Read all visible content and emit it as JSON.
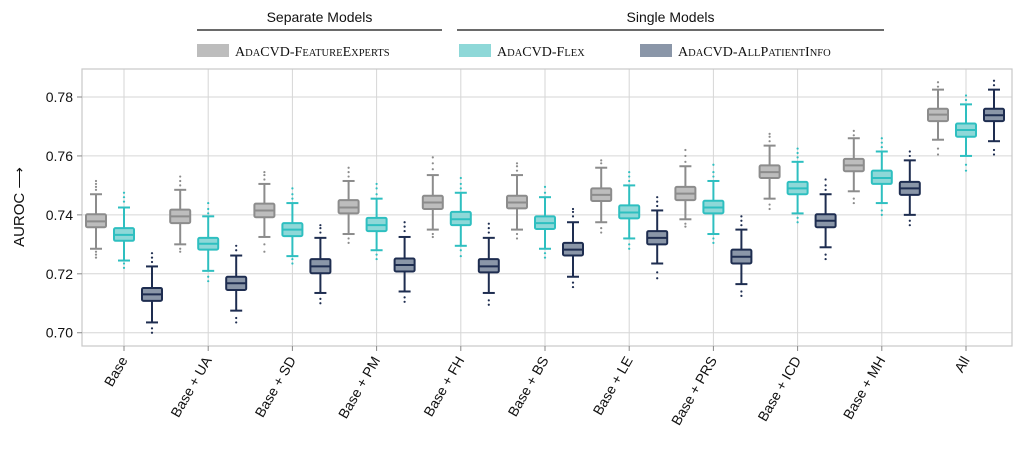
{
  "chart_data": {
    "type": "box",
    "title": "",
    "xlabel": "",
    "ylabel": "AUROC ⟶",
    "ylim": [
      0.6955,
      0.7895
    ],
    "yticks": [
      "0.70",
      "0.72",
      "0.74",
      "0.76",
      "0.78"
    ],
    "ytick_values": [
      0.7,
      0.72,
      0.74,
      0.76,
      0.78
    ],
    "grid": true,
    "legend_position": "top",
    "groups": [
      {
        "label": "Separate Models",
        "series": [
          0
        ]
      },
      {
        "label": "Single Models",
        "series": [
          1,
          2
        ]
      }
    ],
    "categories": [
      "Base",
      "Base + UA",
      "Base + SD",
      "Base + PM",
      "Base + FH",
      "Base + BS",
      "Base + LE",
      "Base + PRS",
      "Base + ICD",
      "Base + MH",
      "All"
    ],
    "series": [
      {
        "name": "AdaCVD-FeatureExperts",
        "legend_main": "A",
        "legend_rest": "DA",
        "legend_main2": "CVD-F",
        "legend_rest2": "EATURE",
        "legend_main3": "E",
        "legend_rest3": "XPERTS",
        "color": "#bdbdbd",
        "edge": "#8c8c8c",
        "boxes": [
          {
            "whislo": 0.7285,
            "q1": 0.7358,
            "med": 0.7378,
            "q3": 0.7402,
            "whishi": 0.747,
            "fliers": [
              0.7255,
              0.7265,
              0.7275,
              0.7485,
              0.7495,
              0.7505,
              0.7515
            ]
          },
          {
            "whislo": 0.73,
            "q1": 0.7372,
            "med": 0.7395,
            "q3": 0.7418,
            "whishi": 0.7485,
            "fliers": [
              0.7275,
              0.7285,
              0.75,
              0.7515,
              0.753
            ]
          },
          {
            "whislo": 0.7325,
            "q1": 0.7392,
            "med": 0.7415,
            "q3": 0.7438,
            "whishi": 0.7505,
            "fliers": [
              0.7275,
              0.73,
              0.752,
              0.7535,
              0.7545
            ]
          },
          {
            "whislo": 0.7335,
            "q1": 0.7405,
            "med": 0.7425,
            "q3": 0.745,
            "whishi": 0.7515,
            "fliers": [
              0.7305,
              0.732,
              0.753,
              0.7545,
              0.756
            ]
          },
          {
            "whislo": 0.735,
            "q1": 0.742,
            "med": 0.7442,
            "q3": 0.7465,
            "whishi": 0.7535,
            "fliers": [
              0.7325,
              0.7335,
              0.7555,
              0.7575,
              0.7595
            ]
          },
          {
            "whislo": 0.735,
            "q1": 0.7422,
            "med": 0.7442,
            "q3": 0.7465,
            "whishi": 0.7535,
            "fliers": [
              0.732,
              0.7335,
              0.755,
              0.7565,
              0.7575
            ]
          },
          {
            "whislo": 0.7375,
            "q1": 0.7447,
            "med": 0.7468,
            "q3": 0.749,
            "whishi": 0.756,
            "fliers": [
              0.734,
              0.7355,
              0.7575,
              0.7585
            ]
          },
          {
            "whislo": 0.7385,
            "q1": 0.745,
            "med": 0.7472,
            "q3": 0.7495,
            "whishi": 0.7565,
            "fliers": [
              0.736,
              0.737,
              0.758,
              0.76,
              0.762
            ]
          },
          {
            "whislo": 0.7455,
            "q1": 0.7525,
            "med": 0.7545,
            "q3": 0.7568,
            "whishi": 0.7635,
            "fliers": [
              0.742,
              0.7435,
              0.765,
              0.7665,
              0.7675
            ]
          },
          {
            "whislo": 0.748,
            "q1": 0.7548,
            "med": 0.7568,
            "q3": 0.759,
            "whishi": 0.766,
            "fliers": [
              0.744,
              0.7455,
              0.767,
              0.7685
            ]
          },
          {
            "whislo": 0.7655,
            "q1": 0.7718,
            "med": 0.774,
            "q3": 0.776,
            "whishi": 0.7825,
            "fliers": [
              0.7605,
              0.7625,
              0.7835,
              0.785
            ]
          }
        ]
      },
      {
        "name": "AdaCVD-Flex",
        "legend_main": "A",
        "legend_rest": "DA",
        "legend_main2": "CVD-F",
        "legend_rest2": "LEX",
        "legend_main3": "",
        "legend_rest3": "",
        "color": "#8ed8d8",
        "edge": "#2ebfc0",
        "boxes": [
          {
            "whislo": 0.7245,
            "q1": 0.7312,
            "med": 0.7332,
            "q3": 0.7355,
            "whishi": 0.7425,
            "fliers": [
              0.722,
              0.7235,
              0.7445,
              0.746,
              0.7475
            ]
          },
          {
            "whislo": 0.721,
            "q1": 0.7282,
            "med": 0.7302,
            "q3": 0.7322,
            "whishi": 0.7395,
            "fliers": [
              0.7175,
              0.719,
              0.7405,
              0.742,
              0.744
            ]
          },
          {
            "whislo": 0.726,
            "q1": 0.7328,
            "med": 0.735,
            "q3": 0.7372,
            "whishi": 0.744,
            "fliers": [
              0.7235,
              0.725,
              0.7455,
              0.747,
              0.749
            ]
          },
          {
            "whislo": 0.728,
            "q1": 0.7345,
            "med": 0.7365,
            "q3": 0.739,
            "whishi": 0.7455,
            "fliers": [
              0.725,
              0.7265,
              0.747,
              0.749,
              0.7505
            ]
          },
          {
            "whislo": 0.7295,
            "q1": 0.7365,
            "med": 0.7385,
            "q3": 0.741,
            "whishi": 0.7475,
            "fliers": [
              0.726,
              0.728,
              0.749,
              0.7505,
              0.7525
            ]
          },
          {
            "whislo": 0.7285,
            "q1": 0.7352,
            "med": 0.7372,
            "q3": 0.7395,
            "whishi": 0.746,
            "fliers": [
              0.7255,
              0.727,
              0.7475,
              0.7495
            ]
          },
          {
            "whislo": 0.732,
            "q1": 0.7388,
            "med": 0.7408,
            "q3": 0.7432,
            "whishi": 0.75,
            "fliers": [
              0.7285,
              0.73,
              0.7515,
              0.753,
              0.7545
            ]
          },
          {
            "whislo": 0.7335,
            "q1": 0.7405,
            "med": 0.7425,
            "q3": 0.7448,
            "whishi": 0.7515,
            "fliers": [
              0.7305,
              0.732,
              0.753,
              0.7545,
              0.757
            ]
          },
          {
            "whislo": 0.7405,
            "q1": 0.747,
            "med": 0.749,
            "q3": 0.7512,
            "whishi": 0.758,
            "fliers": [
              0.7375,
              0.739,
              0.7595,
              0.761,
              0.7625
            ]
          },
          {
            "whislo": 0.744,
            "q1": 0.7505,
            "med": 0.7525,
            "q3": 0.755,
            "whishi": 0.7615,
            "fliers": [
              0.74,
              0.7415,
              0.763,
              0.7645,
              0.766
            ]
          },
          {
            "whislo": 0.76,
            "q1": 0.7665,
            "med": 0.7688,
            "q3": 0.771,
            "whishi": 0.7775,
            "fliers": [
              0.755,
              0.757,
              0.779,
              0.7805
            ]
          }
        ]
      },
      {
        "name": "AdaCVD-AllPatientInfo",
        "legend_main": "A",
        "legend_rest": "DA",
        "legend_main2": "CVD-A",
        "legend_rest2": "LL",
        "legend_main3": "P",
        "legend_rest3": "ATIENT",
        "legend_main4": "I",
        "legend_rest4": "NFO",
        "color": "#8a96a8",
        "edge": "#1e2d50",
        "boxes": [
          {
            "whislo": 0.7035,
            "q1": 0.7108,
            "med": 0.713,
            "q3": 0.7152,
            "whishi": 0.7225,
            "fliers": [
              0.7,
              0.7015,
              0.724,
              0.7255,
              0.727
            ]
          },
          {
            "whislo": 0.7075,
            "q1": 0.7145,
            "med": 0.7168,
            "q3": 0.719,
            "whishi": 0.7262,
            "fliers": [
              0.7035,
              0.705,
              0.728,
              0.7295
            ]
          },
          {
            "whislo": 0.7135,
            "q1": 0.7202,
            "med": 0.7225,
            "q3": 0.725,
            "whishi": 0.7322,
            "fliers": [
              0.71,
              0.7115,
              0.734,
              0.7355,
              0.7365
            ]
          },
          {
            "whislo": 0.714,
            "q1": 0.7208,
            "med": 0.723,
            "q3": 0.7252,
            "whishi": 0.7325,
            "fliers": [
              0.7105,
              0.712,
              0.7345,
              0.736,
              0.7375
            ]
          },
          {
            "whislo": 0.7135,
            "q1": 0.7205,
            "med": 0.7225,
            "q3": 0.725,
            "whishi": 0.7322,
            "fliers": [
              0.7095,
              0.711,
              0.734,
              0.7355,
              0.737
            ]
          },
          {
            "whislo": 0.719,
            "q1": 0.7262,
            "med": 0.7282,
            "q3": 0.7305,
            "whishi": 0.7375,
            "fliers": [
              0.7155,
              0.717,
              0.7395,
              0.741,
              0.742
            ]
          },
          {
            "whislo": 0.7235,
            "q1": 0.73,
            "med": 0.7322,
            "q3": 0.7345,
            "whishi": 0.7415,
            "fliers": [
              0.7185,
              0.7205,
              0.743,
              0.7445,
              0.746
            ]
          },
          {
            "whislo": 0.7165,
            "q1": 0.7235,
            "med": 0.7258,
            "q3": 0.7282,
            "whishi": 0.735,
            "fliers": [
              0.7125,
              0.714,
              0.7365,
              0.738,
              0.7395
            ]
          },
          {
            "whislo": 0.729,
            "q1": 0.7358,
            "med": 0.738,
            "q3": 0.7402,
            "whishi": 0.747,
            "fliers": [
              0.725,
              0.7265,
              0.7485,
              0.75,
              0.752
            ]
          },
          {
            "whislo": 0.74,
            "q1": 0.7468,
            "med": 0.749,
            "q3": 0.7512,
            "whishi": 0.7585,
            "fliers": [
              0.7365,
              0.738,
              0.76,
              0.7615
            ]
          },
          {
            "whislo": 0.765,
            "q1": 0.7718,
            "med": 0.7738,
            "q3": 0.776,
            "whishi": 0.7825,
            "fliers": [
              0.7605,
              0.762,
              0.784,
              0.7855
            ]
          }
        ]
      }
    ]
  }
}
